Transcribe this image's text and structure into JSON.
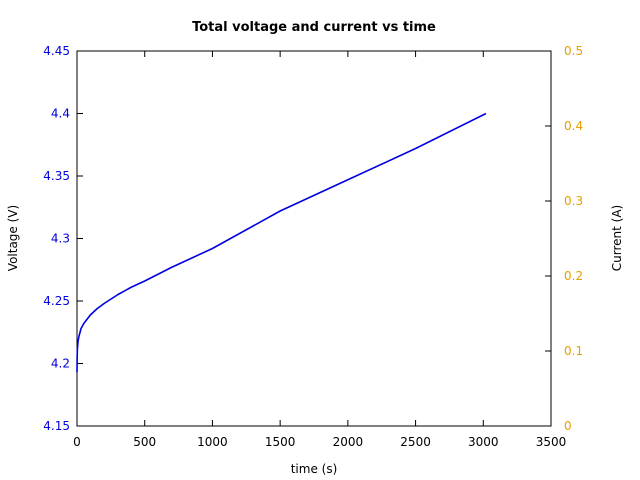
{
  "chart_data": {
    "type": "line",
    "title": "Total voltage and current vs time",
    "xlabel": "time (s)",
    "ylabel_left": "Voltage (V)",
    "ylabel_right": "Current (A)",
    "xlim": [
      0,
      3500
    ],
    "ylim_left": [
      4.15,
      4.45
    ],
    "ylim_right": [
      0,
      0.5
    ],
    "x_ticks": [
      "0",
      "500",
      "1000",
      "1500",
      "2000",
      "2500",
      "3000",
      "3500"
    ],
    "y_left_ticks": [
      "4.15",
      "4.2",
      "4.25",
      "4.3",
      "4.35",
      "4.4",
      "4.45"
    ],
    "y_right_ticks": [
      "0",
      "0.1",
      "0.2",
      "0.3",
      "0.4",
      "0.5"
    ],
    "grid": false,
    "colors": {
      "voltage": "#0000e0",
      "left_axis": "#0000e0",
      "right_axis": "#e6a000"
    },
    "series": [
      {
        "axis": "left",
        "x": [
          0,
          1,
          3,
          8,
          15,
          30,
          50,
          100,
          150,
          200,
          300,
          400,
          500,
          700,
          1000,
          1500,
          2000,
          2500,
          3020
        ],
        "y": [
          4.193,
          4.205,
          4.212,
          4.218,
          4.222,
          4.228,
          4.232,
          4.239,
          4.244,
          4.248,
          4.255,
          4.261,
          4.266,
          4.277,
          4.292,
          4.322,
          4.347,
          4.372,
          4.4
        ]
      }
    ]
  }
}
